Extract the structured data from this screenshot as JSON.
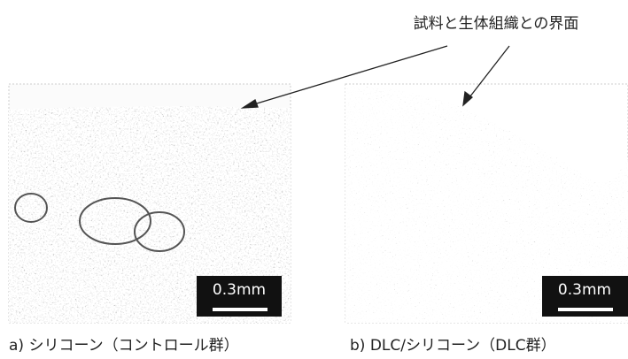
{
  "annotation": "試料と生体組織との界面",
  "panels": [
    {
      "scale_bar": "0.3mm",
      "caption": "a) シリコーン（コントロール群）"
    },
    {
      "scale_bar": "0.3mm",
      "caption": "b) DLC/シリコーン（DLC群）"
    }
  ]
}
